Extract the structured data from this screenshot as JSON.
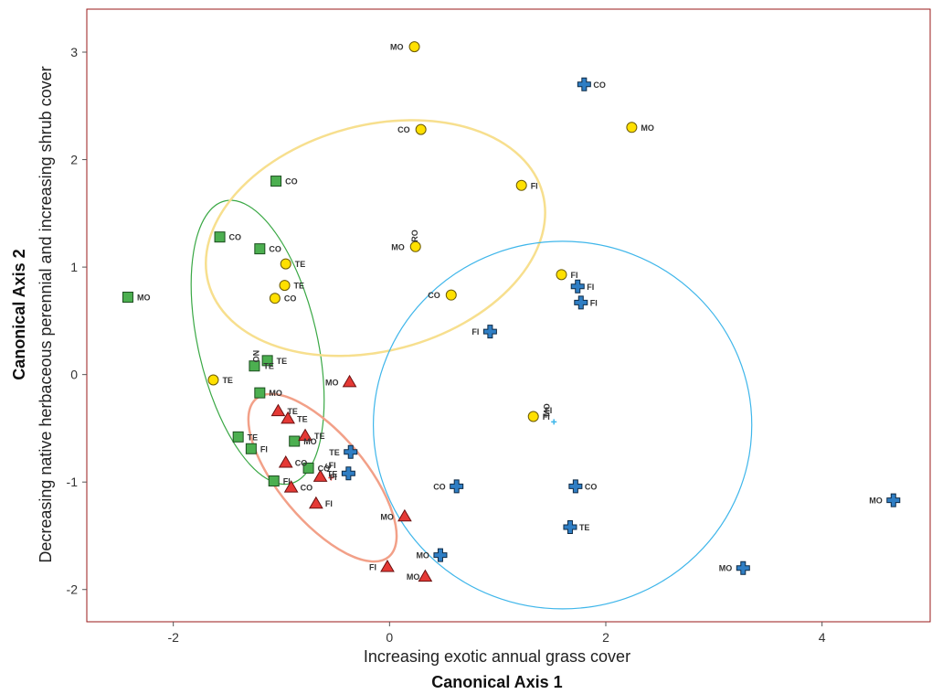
{
  "chart_data": {
    "type": "scatter",
    "xlabel": "Canonical Axis 1",
    "xlabel_sub": "Increasing exotic annual grass cover",
    "ylabel": "Canonical Axis 2",
    "ylabel_sub": "Decreasing native herbaceous perennial and increasing shrub cover",
    "xlim": [
      -2.8,
      5.0
    ],
    "ylim": [
      -2.3,
      3.4
    ],
    "xticks": [
      -2,
      0,
      2,
      4
    ],
    "yticks": [
      -2,
      -1,
      0,
      1,
      2,
      3
    ],
    "xtick_labels": [
      "-2",
      "0",
      "2",
      "4"
    ],
    "ytick_labels": [
      "-2",
      "-1",
      "0",
      "1",
      "2",
      "3"
    ],
    "colors": {
      "square": "#4caf50",
      "circle": "#ffe000",
      "triangle": "#e53935",
      "cross": "#2f7ec4",
      "ellipse_green": "#3aa845",
      "ellipse_yellow": "#f7df8e",
      "ellipse_blue": "#3fb6ea",
      "ellipse_red": "#f2a088",
      "frame": "#9a1a1a"
    },
    "ellipses": [
      {
        "series": "green",
        "cx": -1.22,
        "cy": 0.3,
        "rx": 0.55,
        "ry": 1.35,
        "angle_deg": 13
      },
      {
        "series": "yellow",
        "cx": -0.13,
        "cy": 1.27,
        "rx": 1.6,
        "ry": 1.05,
        "angle_deg": 15
      },
      {
        "series": "blue",
        "cx": 1.6,
        "cy": -0.47,
        "rx": 1.75,
        "ry": 1.71,
        "angle_deg": 0
      },
      {
        "series": "red",
        "cx": -0.62,
        "cy": -0.96,
        "rx": 0.4,
        "ry": 0.96,
        "angle_deg": 40
      }
    ],
    "series": [
      {
        "shape": "square",
        "points": [
          {
            "x": -2.42,
            "y": 0.72,
            "label": "MO"
          },
          {
            "x": -1.05,
            "y": 1.8,
            "label": "CO"
          },
          {
            "x": -1.57,
            "y": 1.28,
            "label": "CO"
          },
          {
            "x": -1.2,
            "y": 1.17,
            "label": "CO"
          },
          {
            "x": -1.13,
            "y": 0.13,
            "label": "TE"
          },
          {
            "x": -1.25,
            "y": 0.08,
            "label": "TE"
          },
          {
            "x": -1.2,
            "y": -0.17,
            "label": "MO"
          },
          {
            "x": -1.4,
            "y": -0.58,
            "label": "TE"
          },
          {
            "x": -1.28,
            "y": -0.69,
            "label": "FI"
          },
          {
            "x": -0.88,
            "y": -0.62,
            "label": "MO"
          },
          {
            "x": -0.75,
            "y": -0.87,
            "label": "CO"
          },
          {
            "x": -1.07,
            "y": -0.99,
            "label": "FI"
          }
        ]
      },
      {
        "shape": "circle",
        "points": [
          {
            "x": 0.23,
            "y": 3.05,
            "label": "MO"
          },
          {
            "x": 0.29,
            "y": 2.28,
            "label": "CO"
          },
          {
            "x": 2.24,
            "y": 2.3,
            "label": "MO"
          },
          {
            "x": 1.22,
            "y": 1.76,
            "label": "FI"
          },
          {
            "x": 0.24,
            "y": 1.19,
            "label": "MO"
          },
          {
            "x": -0.96,
            "y": 1.03,
            "label": "TE"
          },
          {
            "x": -0.97,
            "y": 0.83,
            "label": "TE"
          },
          {
            "x": -1.06,
            "y": 0.71,
            "label": "CO"
          },
          {
            "x": 0.57,
            "y": 0.74,
            "label": "CO"
          },
          {
            "x": 1.59,
            "y": 0.93,
            "label": "FI"
          },
          {
            "x": -1.63,
            "y": -0.05,
            "label": "TE"
          },
          {
            "x": 1.33,
            "y": -0.39,
            "label": "FI"
          }
        ]
      },
      {
        "shape": "triangle",
        "points": [
          {
            "x": -0.37,
            "y": -0.07,
            "label": "MO"
          },
          {
            "x": -1.03,
            "y": -0.34,
            "label": "TE"
          },
          {
            "x": -0.94,
            "y": -0.41,
            "label": "TE"
          },
          {
            "x": -0.78,
            "y": -0.57,
            "label": "TE"
          },
          {
            "x": -0.96,
            "y": -0.82,
            "label": "CO"
          },
          {
            "x": -0.64,
            "y": -0.95,
            "label": "FI"
          },
          {
            "x": -0.91,
            "y": -1.05,
            "label": "CO"
          },
          {
            "x": -0.68,
            "y": -1.2,
            "label": "FI"
          },
          {
            "x": 0.14,
            "y": -1.32,
            "label": "MO"
          },
          {
            "x": -0.02,
            "y": -1.79,
            "label": "FI"
          },
          {
            "x": 0.33,
            "y": -1.88,
            "label": "MO"
          }
        ]
      },
      {
        "shape": "cross",
        "points": [
          {
            "x": 1.8,
            "y": 2.7,
            "label": "CO"
          },
          {
            "x": 1.74,
            "y": 0.82,
            "label": "FI"
          },
          {
            "x": 1.77,
            "y": 0.67,
            "label": "FI"
          },
          {
            "x": 0.93,
            "y": 0.4,
            "label": "FI"
          },
          {
            "x": -0.36,
            "y": -0.72,
            "label": "TE"
          },
          {
            "x": -0.38,
            "y": -0.92,
            "label": "TE"
          },
          {
            "x": 0.62,
            "y": -1.04,
            "label": "CO"
          },
          {
            "x": 1.72,
            "y": -1.04,
            "label": "CO"
          },
          {
            "x": 1.67,
            "y": -1.42,
            "label": "TE"
          },
          {
            "x": 0.47,
            "y": -1.68,
            "label": "MO"
          },
          {
            "x": 3.27,
            "y": -1.8,
            "label": "MO"
          },
          {
            "x": 4.66,
            "y": -1.17,
            "label": "MO"
          }
        ]
      }
    ],
    "stray_labels": [
      {
        "x": -1.26,
        "y": 0.17,
        "text": "NO",
        "rotate": 90
      },
      {
        "x": 0.26,
        "y": 1.29,
        "text": "RO",
        "rotate": -90
      },
      {
        "x": 1.47,
        "y": -0.36,
        "text": "FI",
        "rotate": 0
      },
      {
        "x": 1.48,
        "y": -0.33,
        "text": "MO",
        "rotate": -90
      },
      {
        "x": -0.53,
        "y": -0.87,
        "text": "FI",
        "rotate": 0
      },
      {
        "x": -0.54,
        "y": -0.85,
        "text": "C",
        "rotate": -90
      }
    ],
    "small_marks": [
      {
        "x": 1.52,
        "y": -0.44,
        "color": "#3fb6ea"
      },
      {
        "x": -0.54,
        "y": -0.96,
        "color": "#e53935"
      }
    ]
  }
}
